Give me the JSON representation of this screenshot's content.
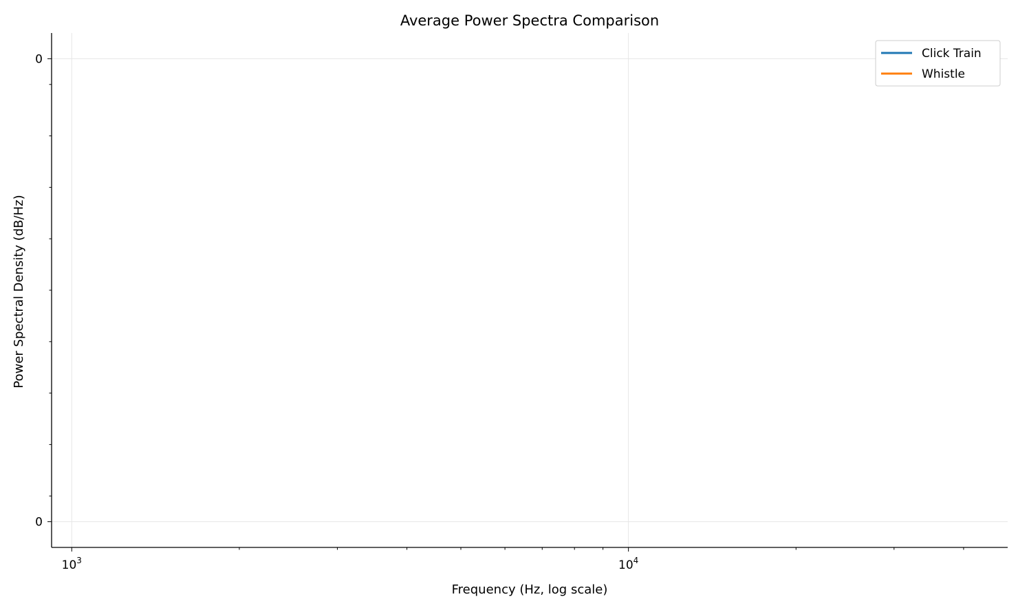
{
  "chart_data": {
    "type": "line",
    "title": "Average Power Spectra Comparison",
    "xlabel": "Frequency (Hz, log scale)",
    "ylabel": "Power Spectral Density (dB/Hz)",
    "xscale": "log",
    "xlim": [
      920,
      48000
    ],
    "ylim": [
      -0.05,
      0.05
    ],
    "x_ticks": [
      {
        "value": 1000,
        "base": "10",
        "exp": "3"
      },
      {
        "value": 10000,
        "base": "10",
        "exp": "4"
      }
    ],
    "y_ticks": [
      {
        "value": 0.045,
        "label": "0"
      },
      {
        "value": -0.045,
        "label": "0"
      }
    ],
    "grid": true,
    "legend_position": "top-right",
    "series": [
      {
        "name": "Click Train",
        "color": "#1f77b4",
        "x": [],
        "y": []
      },
      {
        "name": "Whistle",
        "color": "#ff7f0e",
        "x": [],
        "y": []
      }
    ]
  }
}
